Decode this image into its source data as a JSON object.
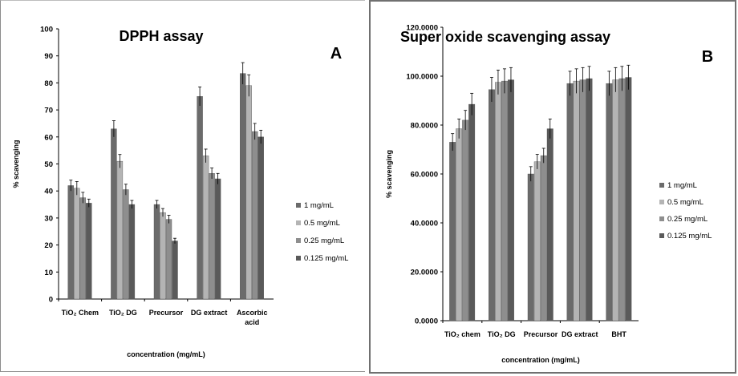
{
  "chart_data": [
    {
      "type": "bar",
      "title": "DPPH assay",
      "panel_label": "A",
      "xlabel": "concentration (mg/mL)",
      "ylabel": "% scavenging",
      "ylim": [
        0,
        100
      ],
      "ytick_step": 10,
      "ytick_labels": [
        "0",
        "10",
        "20",
        "30",
        "40",
        "50",
        "60",
        "70",
        "80",
        "90",
        "100"
      ],
      "grid": false,
      "legend_position": "right",
      "categories": [
        [
          "TiO₂ Chem"
        ],
        [
          "TiO₂ DG"
        ],
        [
          "Precursor"
        ],
        [
          "DG extract"
        ],
        [
          "Ascorbic",
          "acid"
        ]
      ],
      "series": [
        {
          "name": "1 mg/mL",
          "color": "#6b6b6b",
          "values": [
            42,
            63,
            35,
            75,
            83.5
          ],
          "errors": [
            2,
            3,
            1.5,
            3.5,
            4
          ]
        },
        {
          "name": "0.5 mg/mL",
          "color": "#b4b4b4",
          "values": [
            41,
            51,
            32,
            53,
            79
          ],
          "errors": [
            2.5,
            2.5,
            1.5,
            2.5,
            4
          ]
        },
        {
          "name": "0.25 mg/mL",
          "color": "#8e8e8e",
          "values": [
            37.5,
            40.5,
            29.5,
            46.5,
            62
          ],
          "errors": [
            2,
            2,
            1.5,
            2,
            3
          ]
        },
        {
          "name": "0.125 mg/mL",
          "color": "#5a5a5a",
          "values": [
            35.5,
            35,
            21.5,
            44.5,
            60
          ],
          "errors": [
            1.5,
            1.5,
            1,
            2,
            2.5
          ]
        }
      ]
    },
    {
      "type": "bar",
      "title": "Super oxide scavenging assay",
      "panel_label": "B",
      "xlabel": "concentration (mg/mL)",
      "ylabel": "% scavenging",
      "ylim": [
        0,
        120
      ],
      "ytick_step": 20,
      "ytick_labels": [
        "0.0000",
        "20.0000",
        "40.0000",
        "60.0000",
        "80.0000",
        "100.0000",
        "120.0000"
      ],
      "grid": false,
      "legend_position": "right",
      "categories": [
        [
          "TiO₂ chem"
        ],
        [
          "TiO₂ DG"
        ],
        [
          "Precursor"
        ],
        [
          "DG extract"
        ],
        [
          "BHT"
        ]
      ],
      "series": [
        {
          "name": "1 mg/mL",
          "color": "#6b6b6b",
          "values": [
            73,
            94.5,
            60,
            97,
            97
          ],
          "errors": [
            3.5,
            5,
            3,
            5,
            5
          ]
        },
        {
          "name": "0.5 mg/mL",
          "color": "#b4b4b4",
          "values": [
            78.5,
            97.5,
            65,
            98,
            98.5
          ],
          "errors": [
            4,
            5,
            3,
            5,
            5
          ]
        },
        {
          "name": "0.25 mg/mL",
          "color": "#8e8e8e",
          "values": [
            82,
            98,
            67.5,
            98.5,
            99
          ],
          "errors": [
            4,
            5,
            3,
            5,
            5
          ]
        },
        {
          "name": "0.125 mg/mL",
          "color": "#5a5a5a",
          "values": [
            88.5,
            98.5,
            78.5,
            99,
            99.5
          ],
          "errors": [
            4.5,
            5,
            4,
            5,
            5
          ]
        }
      ]
    }
  ]
}
